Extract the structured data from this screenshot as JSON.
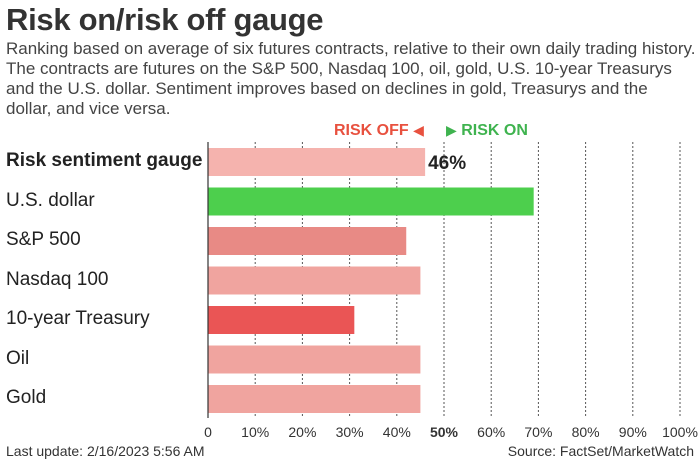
{
  "header": {
    "title": "Risk on/risk off gauge",
    "subtitle": "Ranking based on average of six futures contracts, relative to their own daily trading history. The contracts are futures on the S&P 500, Nasdaq 100, oil, gold, U.S. 10-year Treasurys and the U.S. dollar. Sentiment improves based on declines in gold, Treasurys and the dollar, and vice versa."
  },
  "legend": {
    "risk_off": "RISK OFF",
    "risk_on": "RISK ON",
    "risk_off_color": "#e8513f",
    "risk_on_color": "#3fb34f"
  },
  "footer": {
    "last_update": "Last update: 2/16/2023 5:56 AM",
    "source": "Source: FactSet/MarketWatch"
  },
  "chart_data": {
    "type": "bar",
    "orientation": "horizontal",
    "categories": [
      "Risk sentiment gauge",
      "U.S. dollar",
      "S&P 500",
      "Nasdaq 100",
      "10-year Treasury",
      "Oil",
      "Gold"
    ],
    "values": [
      46,
      69,
      42,
      45,
      31,
      45,
      45
    ],
    "colors": [
      "#f5b3ae",
      "#4dcf4d",
      "#e88a85",
      "#f0a49f",
      "#ea5555",
      "#f0a49f",
      "#f0a49f"
    ],
    "data_labels": [
      "46%",
      "",
      "",
      "",
      "",
      "",
      ""
    ],
    "xlim": [
      0,
      100
    ],
    "xticks": [
      "0",
      "10%",
      "20%",
      "30%",
      "40%",
      "50%",
      "60%",
      "70%",
      "80%",
      "90%",
      "100%"
    ],
    "xtick_values": [
      0,
      10,
      20,
      30,
      40,
      50,
      60,
      70,
      80,
      90,
      100
    ],
    "highlight_tick": 50,
    "grid": true
  }
}
